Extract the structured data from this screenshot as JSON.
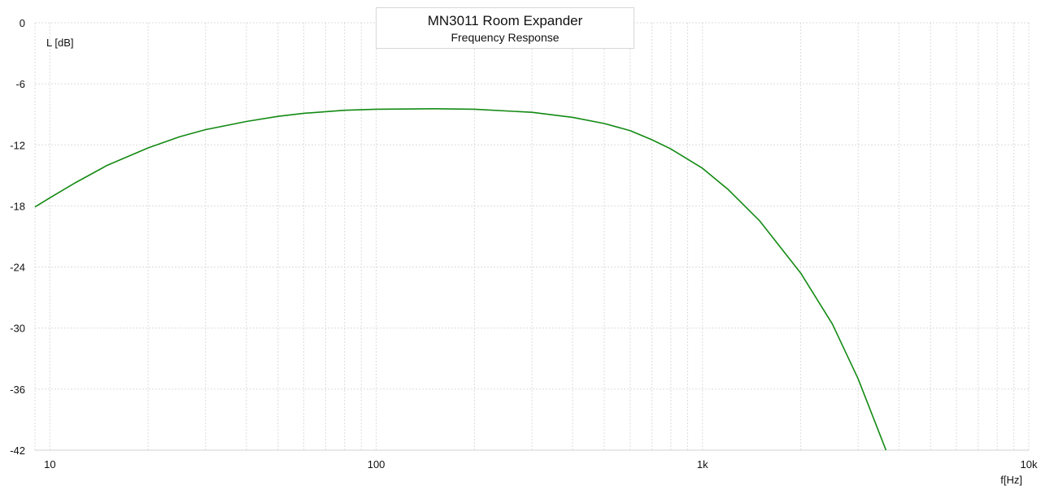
{
  "chart_data": {
    "type": "line",
    "title": "MN3011 Room Expander",
    "subtitle": "Frequency Response",
    "xlabel": "f[Hz]",
    "ylabel": "L [dB]",
    "x_scale": "log",
    "xlim": [
      9,
      10000
    ],
    "ylim": [
      -42,
      0
    ],
    "x_ticks": [
      {
        "value": 10,
        "label": "10"
      },
      {
        "value": 100,
        "label": "100"
      },
      {
        "value": 1000,
        "label": "1k"
      },
      {
        "value": 10000,
        "label": "10k"
      }
    ],
    "y_ticks": [
      {
        "value": 0,
        "label": "0"
      },
      {
        "value": -6,
        "label": "-6"
      },
      {
        "value": -12,
        "label": "-12"
      },
      {
        "value": -18,
        "label": "-18"
      },
      {
        "value": -24,
        "label": "-24"
      },
      {
        "value": -30,
        "label": "-30"
      },
      {
        "value": -36,
        "label": "-36"
      },
      {
        "value": -42,
        "label": "-42"
      }
    ],
    "grid": true,
    "series": [
      {
        "color": "#138a13",
        "points": [
          [
            9,
            -18.1
          ],
          [
            10,
            -17.2
          ],
          [
            12,
            -15.7
          ],
          [
            15,
            -14.0
          ],
          [
            20,
            -12.3
          ],
          [
            25,
            -11.2
          ],
          [
            30,
            -10.5
          ],
          [
            40,
            -9.7
          ],
          [
            50,
            -9.2
          ],
          [
            60,
            -8.9
          ],
          [
            80,
            -8.6
          ],
          [
            100,
            -8.5
          ],
          [
            150,
            -8.45
          ],
          [
            200,
            -8.5
          ],
          [
            300,
            -8.8
          ],
          [
            400,
            -9.3
          ],
          [
            500,
            -9.9
          ],
          [
            600,
            -10.6
          ],
          [
            700,
            -11.5
          ],
          [
            800,
            -12.4
          ],
          [
            1000,
            -14.3
          ],
          [
            1200,
            -16.4
          ],
          [
            1500,
            -19.5
          ],
          [
            2000,
            -24.6
          ],
          [
            2500,
            -29.6
          ],
          [
            3000,
            -35.0
          ],
          [
            3500,
            -40.5
          ],
          [
            3650,
            -42.0
          ]
        ]
      }
    ]
  }
}
